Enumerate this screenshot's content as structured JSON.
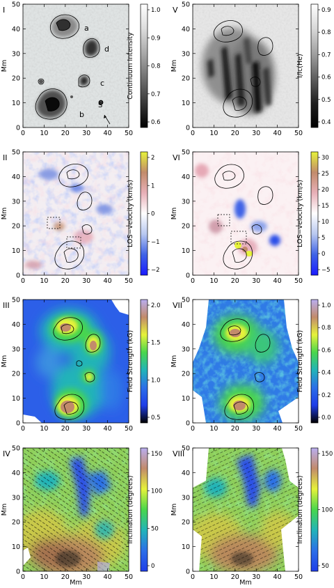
{
  "figure": {
    "unit": "Mm",
    "xticks": [
      "0",
      "10",
      "20",
      "30",
      "40",
      "50"
    ],
    "yticks": [
      "0",
      "10",
      "20",
      "30",
      "40",
      "50"
    ],
    "panels": [
      {
        "roman": "I",
        "colorbar_label": "Continuum Intensity",
        "colorbar_ticks": [
          "1.0",
          "0.9",
          "0.8",
          "0.7",
          "0.6"
        ],
        "colormap": [
          "#ffffff",
          "#dcdcdc",
          "#a8a8a8",
          "#707070",
          "#383838",
          "#000000"
        ],
        "annotations": [
          "a",
          "b",
          "c",
          "d",
          "S"
        ]
      },
      {
        "roman": "V",
        "colorbar_label": "I/Ic(He)",
        "colorbar_ticks": [
          "0.9",
          "0.8",
          "0.7",
          "0.6",
          "0.5",
          "0.4"
        ],
        "colormap": [
          "#ffffff",
          "#d8d8d8",
          "#a0a0a0",
          "#606060",
          "#202020",
          "#000000"
        ]
      },
      {
        "roman": "II",
        "colorbar_label": "LOS−velocity (km/s)",
        "colorbar_ticks": [
          "2",
          "1",
          "0",
          "−1",
          "−2"
        ],
        "colormap": [
          "#e6f23a",
          "#c28b6b",
          "#e8b0b8",
          "#ffffff",
          "#b8c8f0",
          "#3f63e6",
          "#1a1aff"
        ]
      },
      {
        "roman": "VI",
        "colorbar_label": "LOS−velocity (km/s)",
        "colorbar_ticks": [
          "30",
          "25",
          "20",
          "15",
          "10",
          "5",
          "0",
          "−5"
        ],
        "colormap": [
          "#e6f23a",
          "#c28b6b",
          "#e8b0b8",
          "#ffffff",
          "#b8c8f0",
          "#3f63e6",
          "#1a1aff"
        ]
      },
      {
        "roman": "III",
        "colorbar_label": "Field Strength (kG)",
        "colorbar_ticks": [
          "2.0",
          "1.5",
          "1.0",
          "0.5"
        ],
        "colormap": [
          "#b9aef0",
          "#c28b6b",
          "#e6f23a",
          "#49d64c",
          "#22b4b8",
          "#2c6fe8",
          "#1f3de8",
          "#000000"
        ]
      },
      {
        "roman": "VII",
        "colorbar_label": "Field Strength (kG)",
        "colorbar_ticks": [
          "1.0",
          "0.8",
          "0.6",
          "0.4",
          "0.2",
          "0.0"
        ],
        "colormap": [
          "#b9aef0",
          "#c28b6b",
          "#e6f23a",
          "#49d64c",
          "#22b4b8",
          "#2c6fe8",
          "#1f3de8",
          "#000000"
        ]
      },
      {
        "roman": "IV",
        "colorbar_label": "Inclination (degrees)",
        "colorbar_ticks": [
          "150",
          "100",
          "50",
          "0"
        ],
        "colormap": [
          "#b9aef0",
          "#c28b6b",
          "#e6f23a",
          "#49d64c",
          "#22b4b8",
          "#2c6fe8",
          "#1f3de8"
        ]
      },
      {
        "roman": "VIII",
        "colorbar_label": "Inclination (degrees)",
        "colorbar_ticks": [
          "150",
          "100",
          "50"
        ],
        "colormap": [
          "#b9aef0",
          "#c28b6b",
          "#e6f23a",
          "#49d64c",
          "#22b4b8",
          "#2c6fe8",
          "#1f3de8"
        ]
      }
    ]
  }
}
